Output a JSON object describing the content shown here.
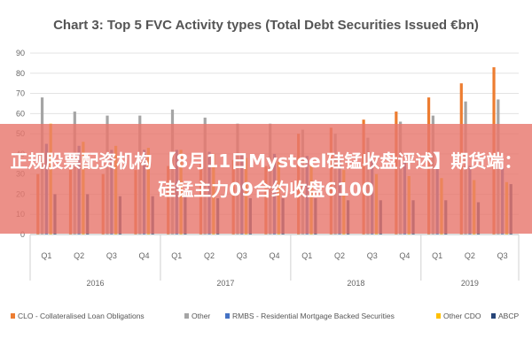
{
  "chart_data": {
    "type": "bar",
    "title": "Chart 3: Top 5 FVC Activity types (Total Debt Securities Issued €bn)",
    "ylim": [
      0,
      90
    ],
    "yticks": [
      0,
      10,
      20,
      30,
      40,
      50,
      60,
      70,
      80,
      90
    ],
    "categories": [
      "Q1",
      "Q2",
      "Q3",
      "Q4",
      "Q1",
      "Q2",
      "Q3",
      "Q4",
      "Q1",
      "Q2",
      "Q3",
      "Q4",
      "Q1",
      "Q2",
      "Q3"
    ],
    "year_groups": [
      {
        "label": "2016",
        "start": 0,
        "count": 4
      },
      {
        "label": "2017",
        "start": 4,
        "count": 4
      },
      {
        "label": "2018",
        "start": 8,
        "count": 4
      },
      {
        "label": "2019",
        "start": 12,
        "count": 3
      }
    ],
    "grid": true,
    "legend_position": "bottom",
    "series": [
      {
        "name": "CLO - Collateralised Loan Obligations",
        "color": "#ED7D31",
        "values": [
          30,
          33,
          30,
          32,
          34,
          35,
          37,
          34,
          50,
          53,
          57,
          61,
          68,
          75,
          83
        ]
      },
      {
        "name": "Other",
        "color": "#A5A5A5",
        "values": [
          68,
          61,
          59,
          59,
          62,
          58,
          55,
          55,
          52,
          50,
          48,
          56,
          59,
          66,
          67
        ]
      },
      {
        "name": "RMBS - Residential Mortgage Backed Securities",
        "color": "#4472C4",
        "values": [
          45,
          44,
          42,
          42,
          42,
          41,
          40,
          40,
          39,
          38,
          37,
          36,
          35,
          34,
          33
        ]
      },
      {
        "name": "Other CDO",
        "color": "#FFC000",
        "values": [
          55,
          46,
          44,
          43,
          42,
          40,
          38,
          36,
          34,
          32,
          30,
          29,
          28,
          27,
          26
        ]
      },
      {
        "name": "ABCP",
        "color": "#264478",
        "values": [
          20,
          20,
          19,
          19,
          19,
          18,
          18,
          18,
          18,
          17,
          17,
          17,
          17,
          16,
          25
        ]
      }
    ]
  },
  "overlay": {
    "headline": "正规股票配资机构 【8月11日Mysteel硅锰收盘评述】期货端：硅锰主力09合约收盘6100"
  }
}
